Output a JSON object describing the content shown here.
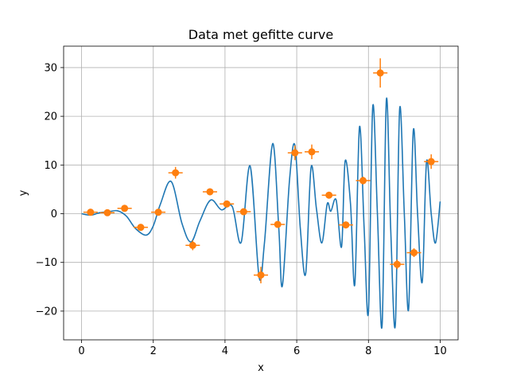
{
  "chart_data": {
    "type": "line",
    "title": "Data met gefitte curve",
    "xlabel": "x",
    "ylabel": "y",
    "xlim": [
      -0.5,
      10.5
    ],
    "ylim": [
      -25.9,
      34.4
    ],
    "grid": true,
    "x_ticks": [
      0,
      2,
      4,
      6,
      8,
      10
    ],
    "y_ticks": [
      -20,
      -10,
      0,
      10,
      20,
      30
    ],
    "x_tick_labels": [
      "0",
      "2",
      "4",
      "6",
      "8",
      "10"
    ],
    "y_tick_labels": [
      "−20",
      "−10",
      "0",
      "10",
      "20",
      "30"
    ],
    "series": [
      {
        "kind": "line",
        "color": "#1f77b4",
        "x": [
          0.0,
          0.25,
          0.5,
          0.75,
          1.0,
          1.25,
          1.5,
          1.8,
          2.0,
          2.2,
          2.5,
          2.8,
          3.05,
          3.3,
          3.6,
          3.9,
          4.2,
          4.45,
          4.7,
          4.95,
          5.1,
          5.33,
          5.5,
          5.6,
          5.8,
          5.95,
          6.1,
          6.25,
          6.4,
          6.55,
          6.7,
          6.85,
          6.95,
          7.1,
          7.25,
          7.35,
          7.5,
          7.62,
          7.75,
          7.88,
          8.0,
          8.12,
          8.25,
          8.38,
          8.5,
          8.62,
          8.75,
          8.87,
          9.0,
          9.12,
          9.25,
          9.37,
          9.5,
          9.62,
          9.75,
          9.87,
          10.0
        ],
        "y": [
          0.0,
          -0.3,
          0.2,
          0.4,
          0.6,
          -0.5,
          -3.0,
          -4.4,
          -2.5,
          2.0,
          6.6,
          -2.0,
          -5.8,
          -1.5,
          2.8,
          0.8,
          1.5,
          -5.9,
          9.8,
          -13.0,
          -6.0,
          14.4,
          -3.0,
          -14.8,
          7.0,
          14.0,
          -3.0,
          -12.3,
          9.5,
          1.0,
          -6.0,
          2.0,
          0.5,
          2.8,
          -6.8,
          10.8,
          2.0,
          -14.5,
          17.8,
          -3.0,
          -20.2,
          22.0,
          0.0,
          -23.0,
          23.4,
          -3.0,
          -22.8,
          21.5,
          0.0,
          -19.6,
          17.0,
          0.0,
          -14.0,
          10.7,
          0.0,
          -6.0,
          2.5
        ]
      },
      {
        "kind": "errorbar",
        "color": "#ff7f0e",
        "x": [
          0.25,
          0.72,
          1.2,
          1.65,
          2.14,
          2.62,
          3.1,
          3.58,
          4.05,
          4.52,
          5.0,
          5.47,
          5.95,
          6.42,
          6.9,
          7.37,
          7.85,
          8.33,
          8.8,
          9.27,
          9.75
        ],
        "y": [
          0.3,
          0.2,
          1.1,
          -2.8,
          0.3,
          8.4,
          -6.5,
          4.5,
          2.0,
          0.4,
          -12.6,
          -2.2,
          12.5,
          12.7,
          3.8,
          -2.3,
          6.8,
          28.9,
          -10.4,
          -8.0,
          10.7
        ],
        "xerr": [
          0.2,
          0.2,
          0.2,
          0.2,
          0.2,
          0.2,
          0.2,
          0.2,
          0.2,
          0.2,
          0.2,
          0.2,
          0.2,
          0.2,
          0.2,
          0.2,
          0.2,
          0.2,
          0.2,
          0.2,
          0.2
        ],
        "yerr": [
          0.3,
          0.3,
          0.4,
          0.5,
          0.3,
          1.2,
          1.0,
          0.7,
          0.4,
          0.3,
          1.7,
          0.4,
          1.5,
          1.5,
          0.6,
          0.4,
          0.8,
          3.0,
          1.0,
          0.9,
          1.5
        ]
      }
    ]
  }
}
